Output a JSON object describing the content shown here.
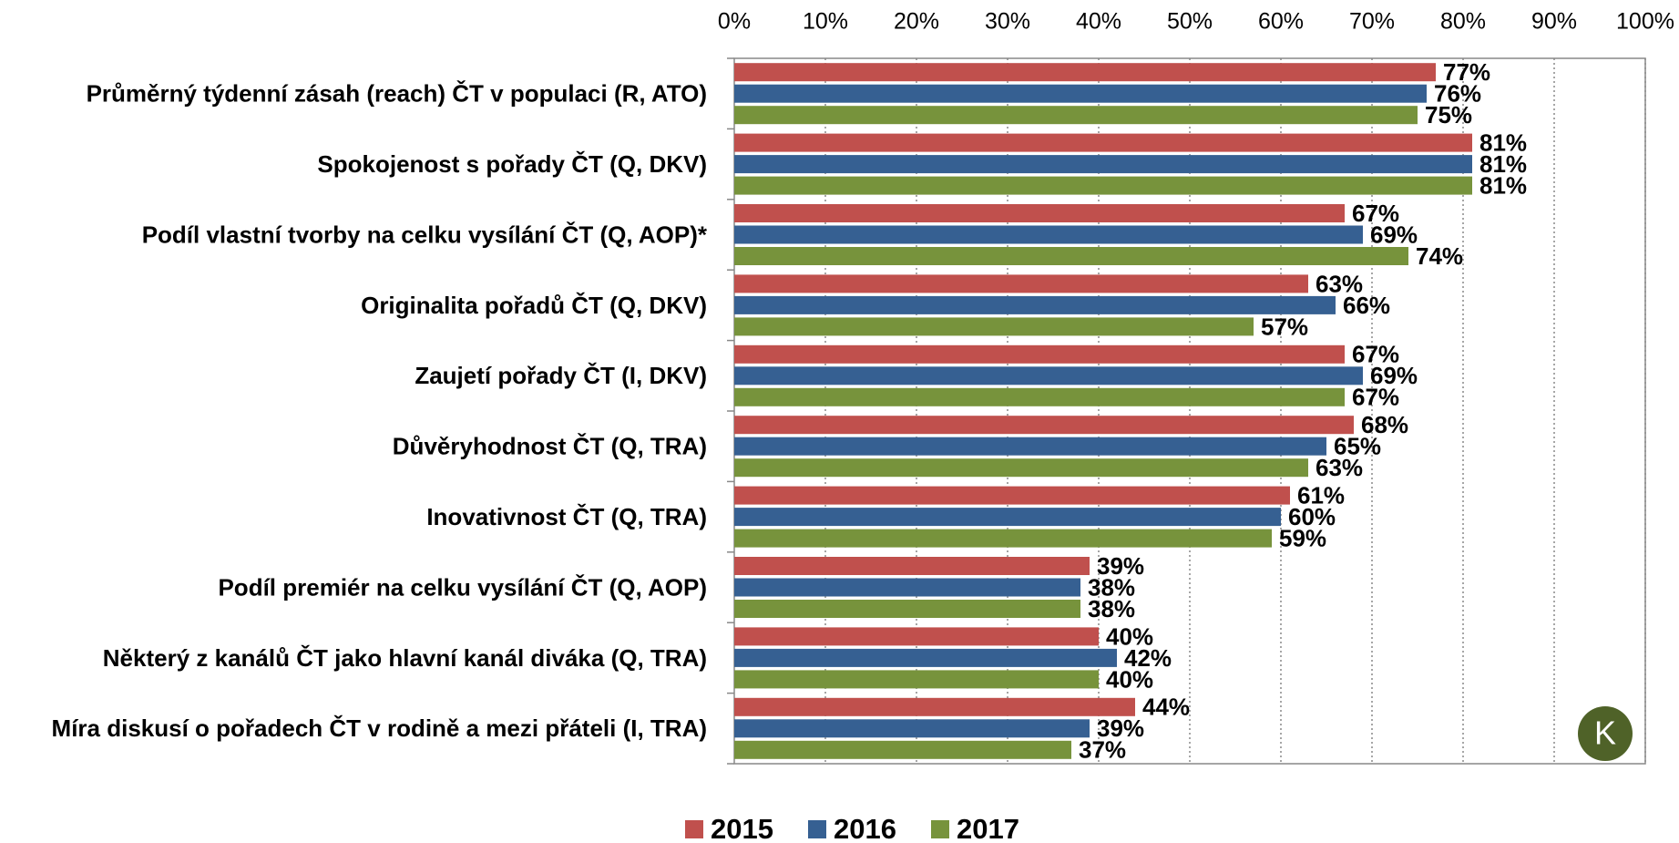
{
  "chart_data": {
    "type": "barh",
    "categories": [
      "Průměrný týdenní zásah (reach) ČT v populaci (R, ATO)",
      "Spokojenost s pořady ČT (Q, DKV)",
      "Podíl vlastní tvorby na celku vysílání ČT (Q, AOP)*",
      "Originalita pořadů ČT (Q, DKV)",
      "Zaujetí pořady ČT (I, DKV)",
      "Důvěryhodnost ČT (Q, TRA)",
      "Inovativnost ČT (Q, TRA)",
      "Podíl premiér na celku vysílání ČT (Q, AOP)",
      "Některý z kanálů ČT jako hlavní kanál diváka (Q, TRA)",
      "Míra diskusí o pořadech ČT v rodině a mezi přáteli (I, TRA)"
    ],
    "series": [
      {
        "name": "2015",
        "color": "#c0504d",
        "values": [
          77,
          81,
          67,
          63,
          67,
          68,
          61,
          39,
          40,
          44
        ],
        "value_labels": [
          "77%",
          "81%",
          "67%",
          "63%",
          "67%",
          "68%",
          "61%",
          "39%",
          "40%",
          "44%"
        ]
      },
      {
        "name": "2016",
        "color": "#366092",
        "values": [
          76,
          81,
          69,
          66,
          69,
          65,
          60,
          38,
          42,
          39
        ],
        "value_labels": [
          "76%",
          "81%",
          "69%",
          "66%",
          "69%",
          "65%",
          "60%",
          "38%",
          "42%",
          "39%"
        ]
      },
      {
        "name": "2017",
        "color": "#77933c",
        "values": [
          75,
          81,
          74,
          57,
          67,
          63,
          59,
          38,
          40,
          37
        ],
        "value_labels": [
          "75%",
          "81%",
          "74%",
          "57%",
          "67%",
          "63%",
          "59%",
          "38%",
          "40%",
          "37%"
        ]
      }
    ],
    "xlim": [
      0,
      100
    ],
    "xticks": [
      {
        "value": 0,
        "label": "0%"
      },
      {
        "value": 10,
        "label": "10%"
      },
      {
        "value": 20,
        "label": "20%"
      },
      {
        "value": 30,
        "label": "30%"
      },
      {
        "value": 40,
        "label": "40%"
      },
      {
        "value": 50,
        "label": "50%"
      },
      {
        "value": 60,
        "label": "60%"
      },
      {
        "value": 70,
        "label": "70%"
      },
      {
        "value": 80,
        "label": "80%"
      },
      {
        "value": 90,
        "label": "90%"
      },
      {
        "value": 100,
        "label": "100%"
      }
    ],
    "grid": true,
    "legend": "bottom",
    "logo": "K"
  }
}
